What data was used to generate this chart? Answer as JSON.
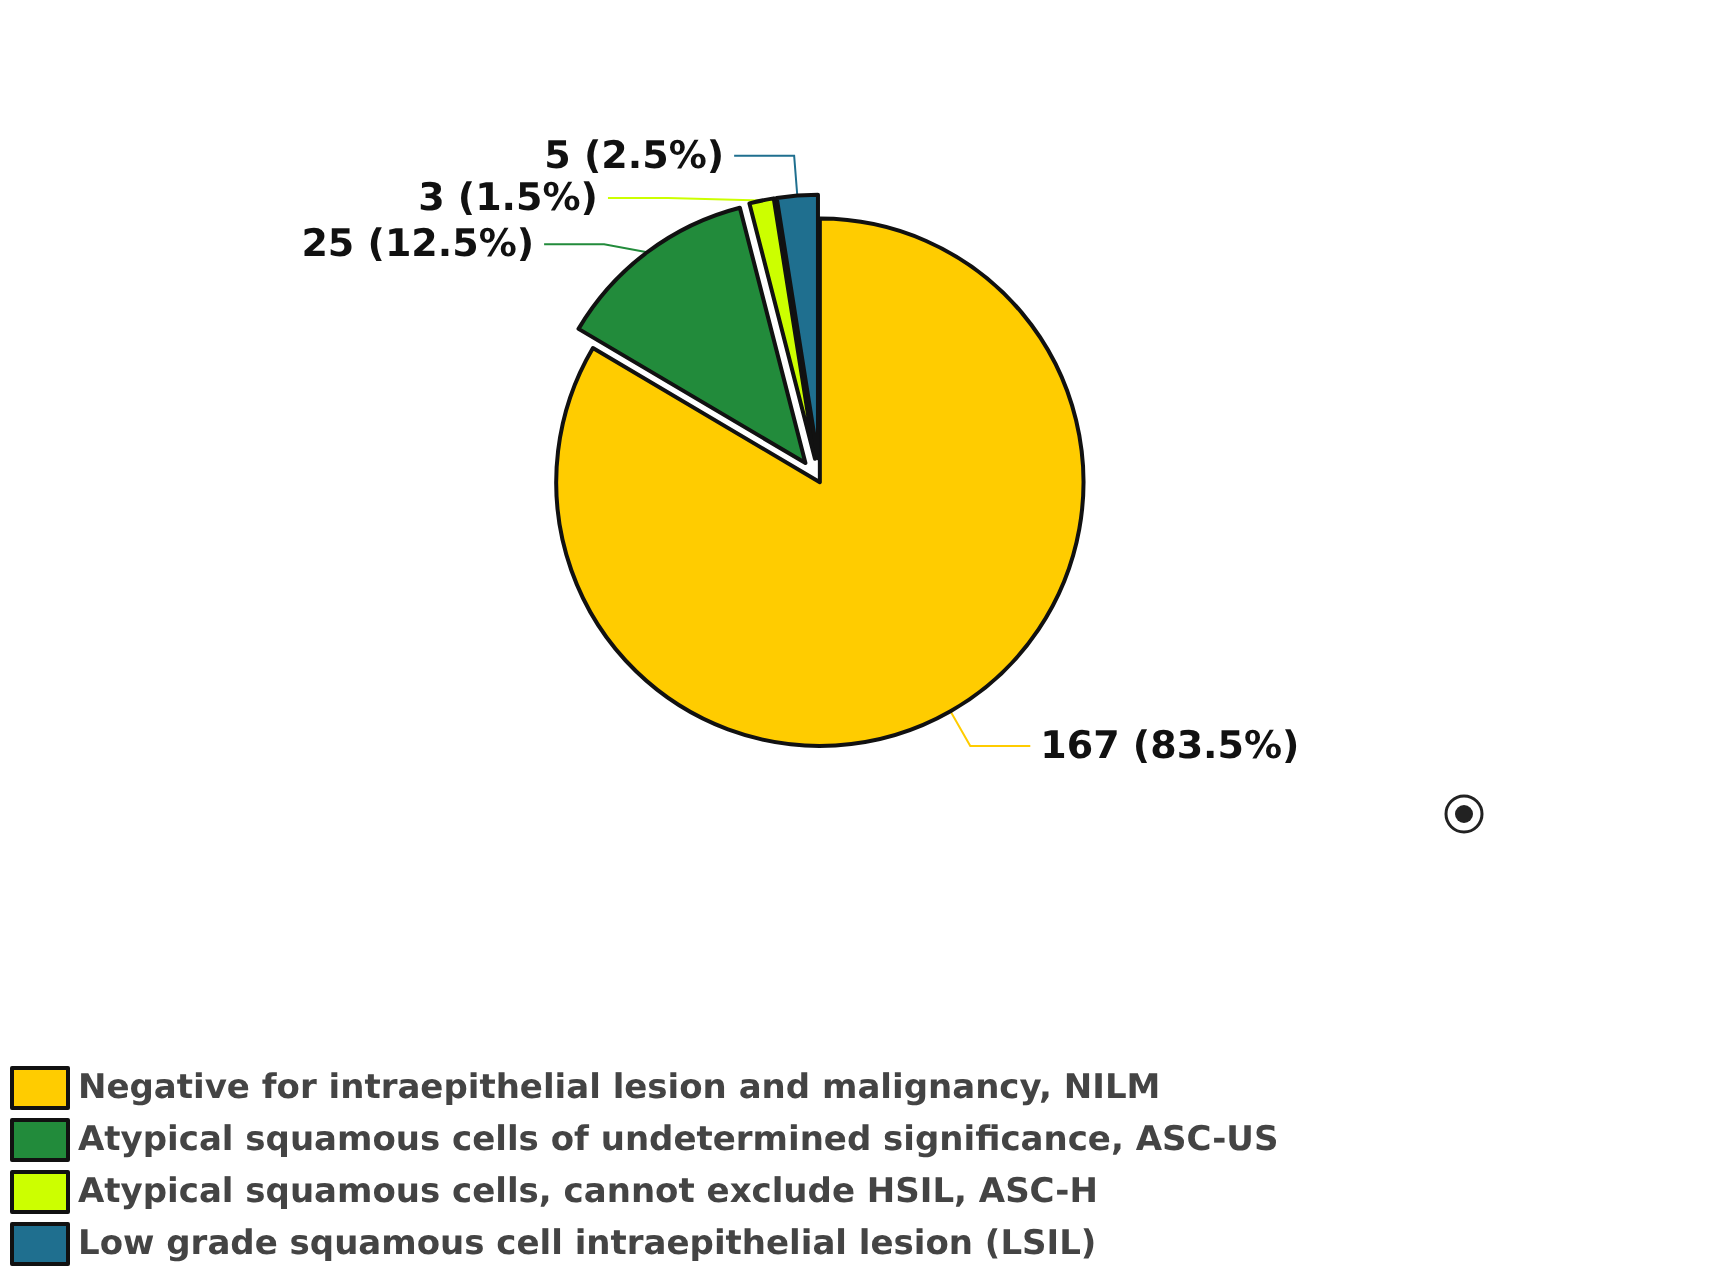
{
  "chart_data": {
    "type": "pie",
    "categories": [
      "Negative for intraepithelial lesion and malignancy, NILM",
      "Atypical squamous cells of undetermined significance, ASC-US",
      "Atypical squamous cells, cannot exclude HSIL, ASC-H",
      "Low grade squamous cell intraepithelial lesion (LSIL)"
    ],
    "values": [
      167,
      25,
      3,
      5
    ],
    "colors": [
      "#ffcc00",
      "#228b3b",
      "#ccff00",
      "#1f6f8f"
    ],
    "value_labels": [
      "167 (83.5%)",
      "25 (12.5%)",
      "3 (1.5%)",
      "5 (2.5%)"
    ],
    "legend": "bottom"
  }
}
